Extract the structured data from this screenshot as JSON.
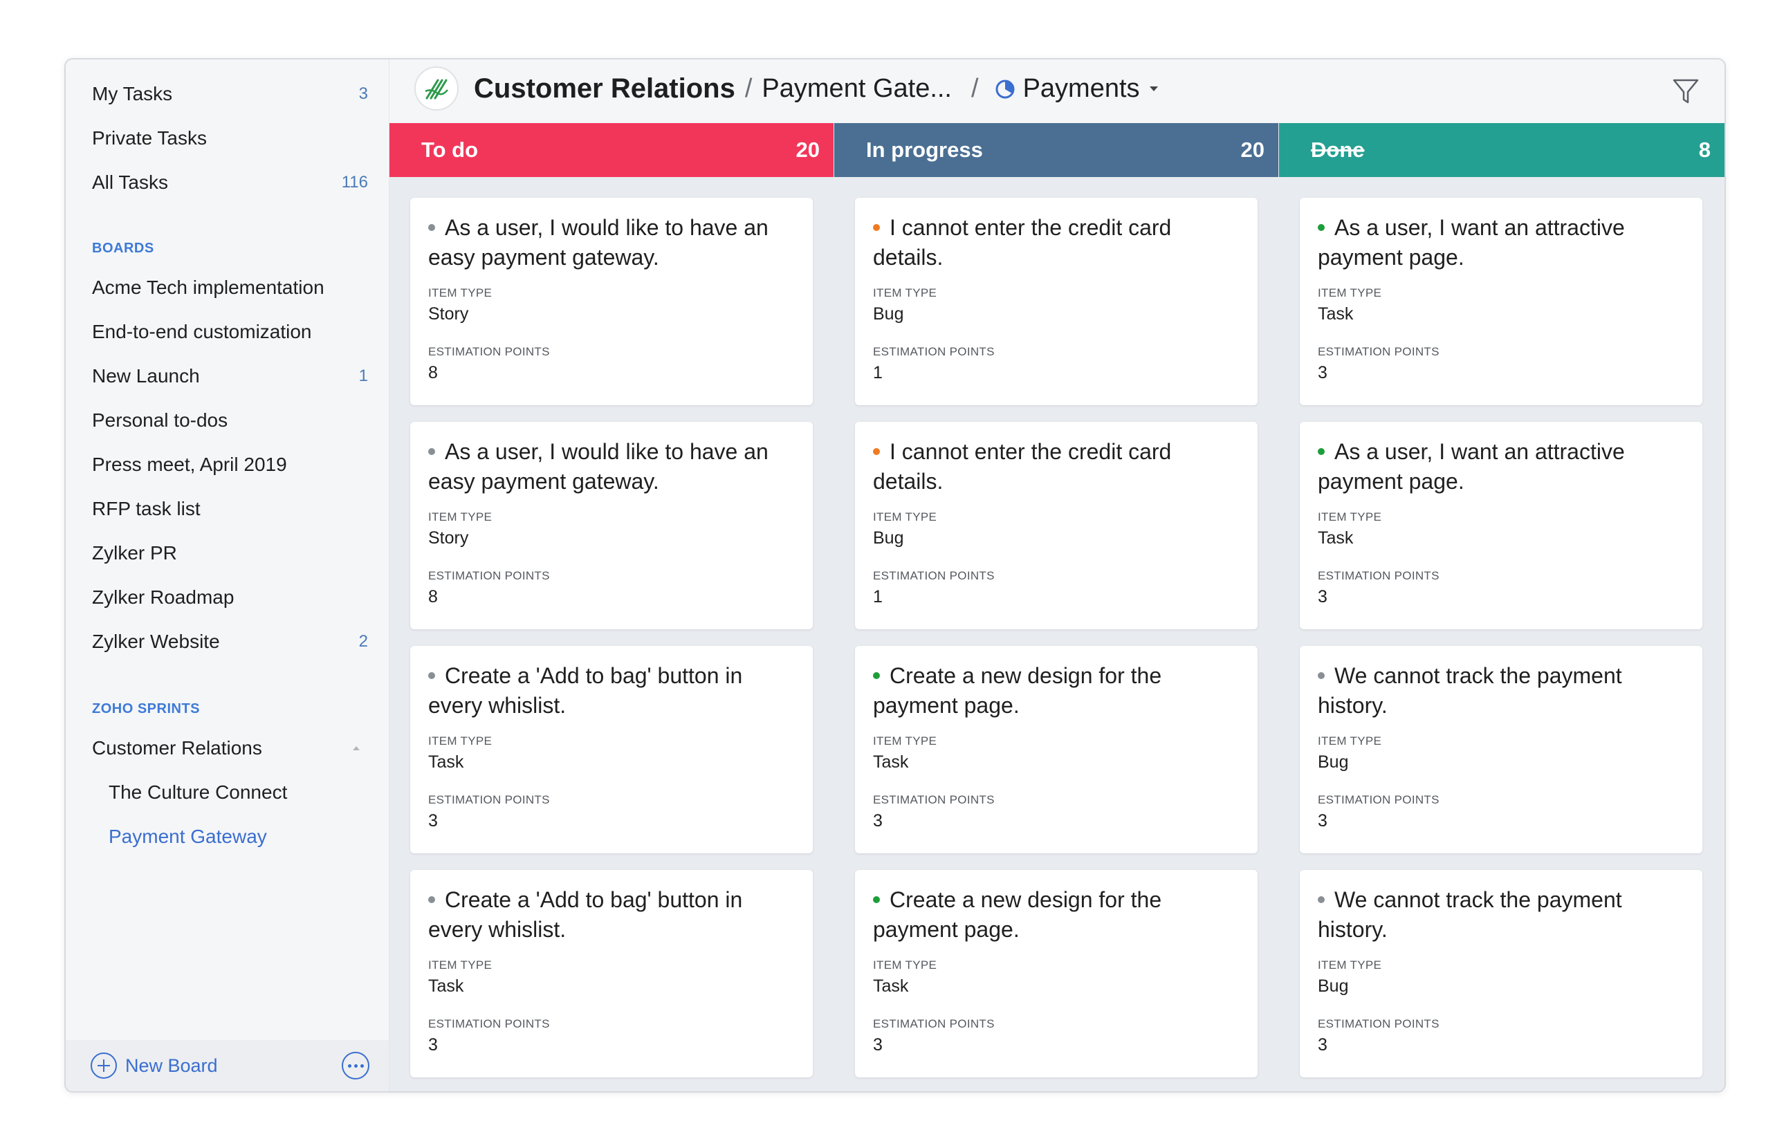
{
  "sidebar": {
    "top_items": [
      {
        "label": "My Tasks",
        "count": "3"
      },
      {
        "label": "Private Tasks",
        "count": ""
      },
      {
        "label": "All Tasks",
        "count": "116"
      }
    ],
    "boards_title": "BOARDS",
    "boards": [
      {
        "label": "Acme Tech implementation",
        "count": ""
      },
      {
        "label": "End-to-end customization",
        "count": ""
      },
      {
        "label": "New Launch",
        "count": "1"
      },
      {
        "label": "Personal to-dos",
        "count": ""
      },
      {
        "label": "Press meet, April 2019",
        "count": ""
      },
      {
        "label": "RFP task list",
        "count": ""
      },
      {
        "label": "Zylker PR",
        "count": ""
      },
      {
        "label": "Zylker Roadmap",
        "count": ""
      },
      {
        "label": "Zylker Website",
        "count": "2"
      }
    ],
    "sprints_title": "ZOHO SPRINTS",
    "sprints": [
      {
        "label": "Customer Relations"
      },
      {
        "label": "The Culture Connect"
      },
      {
        "label": "Payment Gateway"
      }
    ],
    "footer": {
      "new_board": "New Board"
    }
  },
  "header": {
    "project": "Customer Relations",
    "sep1": "/",
    "board": "Payment Gate...",
    "sep2": "/",
    "sprint": "Payments"
  },
  "colors": {
    "todo": "#f2365a",
    "in_progress": "#4a6f93",
    "done": "#24a092",
    "dot_grey": "#8a8f96",
    "dot_orange": "#f07a22",
    "dot_green": "#1f9d3a"
  },
  "columns": [
    {
      "title": "To do",
      "count": "20",
      "cards": [
        {
          "title": "As a user, I would like to have an easy payment gateway.",
          "type_label": "ITEM TYPE",
          "type": "Story",
          "points_label": "ESTIMATION POINTS",
          "points": "8",
          "dot": "grey"
        },
        {
          "title": "As a user, I would like to have an easy payment gateway.",
          "type_label": "ITEM TYPE",
          "type": "Story",
          "points_label": "ESTIMATION POINTS",
          "points": "8",
          "dot": "grey"
        },
        {
          "title": "Create a 'Add to bag' button in every whislist.",
          "type_label": "ITEM TYPE",
          "type": "Task",
          "points_label": "ESTIMATION POINTS",
          "points": "3",
          "dot": "grey"
        },
        {
          "title": "Create a 'Add to bag' button in every whislist.",
          "type_label": "ITEM TYPE",
          "type": "Task",
          "points_label": "ESTIMATION POINTS",
          "points": "3",
          "dot": "grey"
        }
      ]
    },
    {
      "title": "In progress",
      "count": "20",
      "cards": [
        {
          "title": "I cannot enter the credit card details.",
          "type_label": "ITEM TYPE",
          "type": "Bug",
          "points_label": "ESTIMATION POINTS",
          "points": "1",
          "dot": "orange"
        },
        {
          "title": "I cannot enter the credit card details.",
          "type_label": "ITEM TYPE",
          "type": "Bug",
          "points_label": "ESTIMATION POINTS",
          "points": "1",
          "dot": "orange"
        },
        {
          "title": "Create a new design for the payment page.",
          "type_label": "ITEM TYPE",
          "type": "Task",
          "points_label": "ESTIMATION POINTS",
          "points": "3",
          "dot": "green"
        },
        {
          "title": "Create a new design for the payment page.",
          "type_label": "ITEM TYPE",
          "type": "Task",
          "points_label": "ESTIMATION POINTS",
          "points": "3",
          "dot": "green"
        }
      ]
    },
    {
      "title": "Done",
      "count": "8",
      "cards": [
        {
          "title": "As a user, I want an attractive payment page.",
          "type_label": "ITEM TYPE",
          "type": "Task",
          "points_label": "ESTIMATION POINTS",
          "points": "3",
          "dot": "green"
        },
        {
          "title": "As a user, I want an attractive payment page.",
          "type_label": "ITEM TYPE",
          "type": "Task",
          "points_label": "ESTIMATION POINTS",
          "points": "3",
          "dot": "green"
        },
        {
          "title": "We cannot track the payment history.",
          "type_label": "ITEM TYPE",
          "type": "Bug",
          "points_label": "ESTIMATION POINTS",
          "points": "3",
          "dot": "grey"
        },
        {
          "title": "We cannot track the payment history.",
          "type_label": "ITEM TYPE",
          "type": "Bug",
          "points_label": "ESTIMATION POINTS",
          "points": "3",
          "dot": "grey"
        }
      ]
    }
  ]
}
